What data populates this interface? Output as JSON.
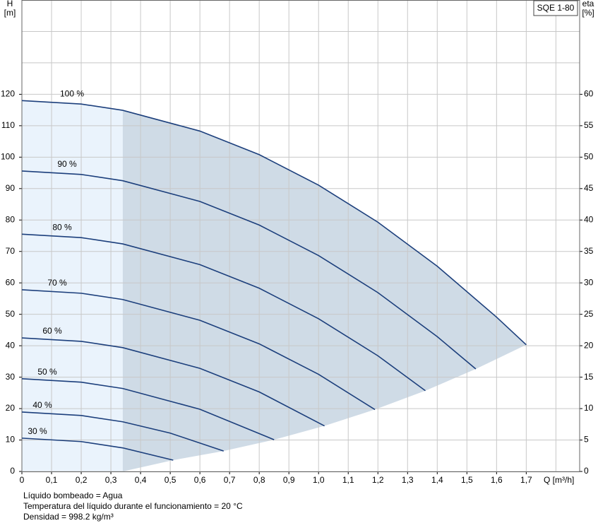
{
  "chart_data": {
    "type": "line",
    "title": "SQE 1-80",
    "x_label": "Q [m³/h]",
    "y_label": "H",
    "y_unit": "[m]",
    "y2_label": "eta",
    "y2_unit": "[%]",
    "xlim": [
      0,
      1.88
    ],
    "ylim": [
      0,
      150
    ],
    "y2lim": [
      0,
      75
    ],
    "xticks": [
      0,
      {
        "value": 0.1,
        "label": "0,1"
      },
      {
        "value": 0.2,
        "label": "0,2"
      },
      {
        "value": 0.3,
        "label": "0,3"
      },
      {
        "value": 0.4,
        "label": "0,4"
      },
      {
        "value": 0.5,
        "label": "0,5"
      },
      {
        "value": 0.6,
        "label": "0,6"
      },
      {
        "value": 0.7,
        "label": "0,7"
      },
      {
        "value": 0.8,
        "label": "0,8"
      },
      {
        "value": 0.9,
        "label": "0,9"
      },
      {
        "value": 1,
        "label": "1,0"
      },
      {
        "value": 1.1,
        "label": "1,1"
      },
      {
        "value": 1.2,
        "label": "1,2"
      },
      {
        "value": 1.3,
        "label": "1,3"
      },
      {
        "value": 1.4,
        "label": "1,4"
      },
      {
        "value": 1.5,
        "label": "1,5"
      },
      {
        "value": 1.6,
        "label": "1,6"
      },
      {
        "value": 1.7,
        "label": "1,7"
      }
    ],
    "x_gridlines_unlabeled": [
      1.8
    ],
    "yticks": [
      0,
      10,
      20,
      30,
      40,
      50,
      60,
      70,
      80,
      90,
      100,
      110,
      120
    ],
    "y_gridlines_unlabeled": [
      130,
      140
    ],
    "y2ticks": [
      0,
      5,
      10,
      15,
      20,
      25,
      30,
      35,
      40,
      45,
      50,
      55,
      60
    ],
    "grid": true,
    "color": "#1c3f7c",
    "operating_region": {
      "x_min": 0.34
    },
    "series": [
      {
        "name": "100 %",
        "x": [
          0,
          0.2,
          0.34,
          0.6,
          0.8,
          1.0,
          1.2,
          1.4,
          1.6,
          1.7
        ],
        "values": [
          118,
          116.9,
          114.9,
          108.3,
          100.8,
          91.1,
          79.3,
          65.3,
          49.1,
          40.3
        ]
      },
      {
        "name": "90 %",
        "x": [
          0,
          0.2,
          0.34,
          0.6,
          0.8,
          1.0,
          1.2,
          1.4,
          1.53
        ],
        "values": [
          95.6,
          94.5,
          92.5,
          85.9,
          78.4,
          68.7,
          56.9,
          42.9,
          32.6
        ]
      },
      {
        "name": "80 %",
        "x": [
          0,
          0.2,
          0.34,
          0.6,
          0.8,
          1.0,
          1.2,
          1.36
        ],
        "values": [
          75.5,
          74.4,
          72.4,
          65.8,
          58.3,
          48.6,
          36.8,
          25.7
        ]
      },
      {
        "name": "70 %",
        "x": [
          0,
          0.2,
          0.34,
          0.6,
          0.8,
          1.0,
          1.19
        ],
        "values": [
          57.8,
          56.7,
          54.7,
          48.1,
          40.6,
          30.9,
          19.7
        ]
      },
      {
        "name": "60 %",
        "x": [
          0,
          0.2,
          0.34,
          0.6,
          0.8,
          1.02
        ],
        "values": [
          42.5,
          41.4,
          39.4,
          32.8,
          25.3,
          14.5
        ]
      },
      {
        "name": "50 %",
        "x": [
          0,
          0.2,
          0.34,
          0.6,
          0.85
        ],
        "values": [
          29.5,
          28.4,
          26.4,
          19.8,
          10.1
        ]
      },
      {
        "name": "40 %",
        "x": [
          0,
          0.2,
          0.34,
          0.5,
          0.68
        ],
        "values": [
          18.9,
          17.8,
          15.8,
          12.2,
          6.5
        ]
      },
      {
        "name": "30 %",
        "x": [
          0,
          0.2,
          0.34,
          0.51
        ],
        "values": [
          10.6,
          9.5,
          7.5,
          3.6
        ]
      }
    ],
    "notes": [
      "Líquido bombeado = Agua",
      "Temperatura del líquido durante el funcionamiento = 20 °C",
      "Densidad = 998.2 kg/m³"
    ]
  }
}
